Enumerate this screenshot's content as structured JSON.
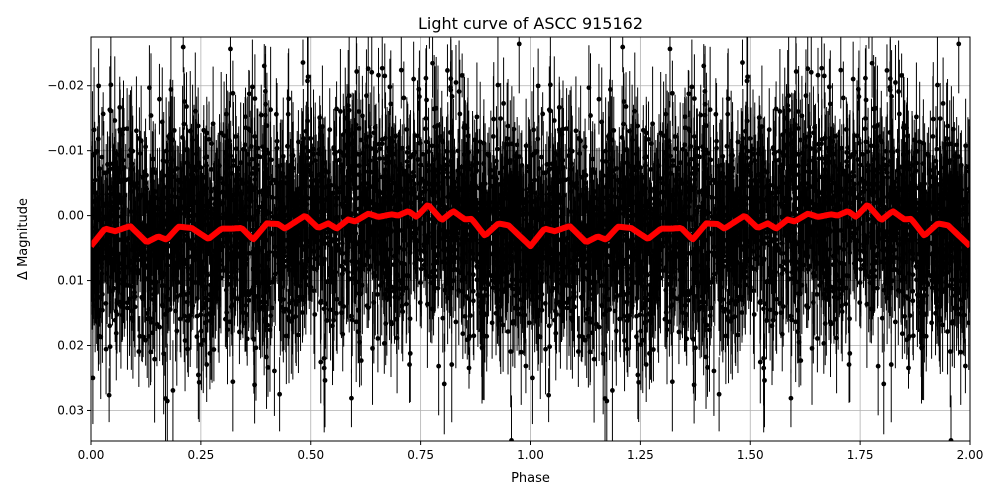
{
  "chart_data": {
    "type": "scatter",
    "title": "Light curve of ASCC 915162",
    "xlabel": "Phase",
    "ylabel": "Δ Magnitude",
    "xlim": [
      0,
      2
    ],
    "ylim": [
      0.0347,
      -0.0275
    ],
    "y_inverted": true,
    "grid": true,
    "xticks": [
      0,
      0.25,
      0.5,
      0.75,
      1.0,
      1.25,
      1.5,
      1.75,
      2.0
    ],
    "xtick_labels": [
      "0.00",
      "0.25",
      "0.50",
      "0.75",
      "1.00",
      "1.25",
      "1.50",
      "1.75",
      "2.00"
    ],
    "yticks": [
      -0.02,
      -0.01,
      0.0,
      0.01,
      0.02,
      0.03
    ],
    "ytick_labels": [
      "−0.02",
      "−0.01",
      "0.00",
      "0.01",
      "0.02",
      "0.03"
    ],
    "series": [
      {
        "kind": "errorbar-points",
        "color": "#000000",
        "spread": 0.009
      },
      {
        "kind": "binned-line",
        "color": "#ff0000",
        "x": [
          0.0,
          0.032,
          0.055,
          0.089,
          0.127,
          0.153,
          0.172,
          0.199,
          0.229,
          0.267,
          0.297,
          0.32,
          0.343,
          0.369,
          0.4,
          0.426,
          0.441,
          0.487,
          0.517,
          0.54,
          0.559,
          0.585,
          0.601,
          0.631,
          0.654,
          0.684,
          0.699,
          0.722,
          0.741,
          0.767,
          0.798,
          0.824,
          0.851,
          0.866,
          0.896,
          0.927,
          0.95,
          1.0
        ],
        "y": [
          0.0047,
          0.002,
          0.0024,
          0.0016,
          0.0041,
          0.0032,
          0.0037,
          0.0017,
          0.0019,
          0.0036,
          0.002,
          0.002,
          0.0019,
          0.0037,
          0.0012,
          0.0013,
          0.002,
          0.0,
          0.0019,
          0.0012,
          0.002,
          0.0006,
          0.0009,
          -0.0003,
          0.0002,
          -0.0002,
          0.0,
          -0.0007,
          0.0002,
          -0.0017,
          0.0007,
          -0.0007,
          0.0006,
          0.0005,
          0.0031,
          0.0012,
          0.0015,
          0.0047
        ],
        "repeats_each_phase": true
      }
    ]
  }
}
